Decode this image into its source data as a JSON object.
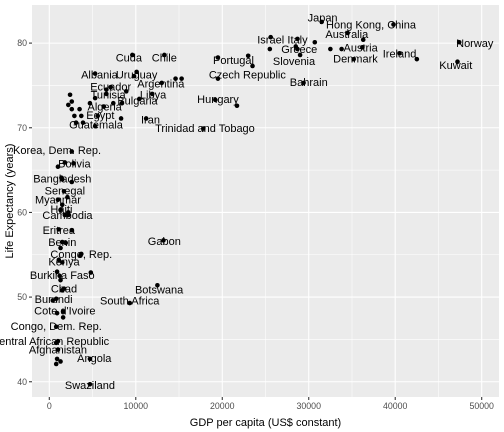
{
  "chart_data": {
    "type": "scatter",
    "title": "",
    "xlabel": "GDP per capita (US$ constant)",
    "ylabel": "Life Expectancy (years)",
    "xlim": [
      -2000,
      52000
    ],
    "ylim": [
      38.2,
      84.5
    ],
    "x_ticks": [
      0,
      10000,
      20000,
      30000,
      40000,
      50000
    ],
    "y_ticks": [
      40,
      50,
      60,
      70,
      80
    ],
    "grid": true,
    "legend": "none",
    "points": [
      {
        "label": "Japan",
        "x": 31500,
        "y": 82.5,
        "lx": 31600,
        "ly": 83.0
      },
      {
        "label": "Hong Kong, China",
        "x": 39800,
        "y": 82.2,
        "lx": 37200,
        "ly": 82.2
      },
      {
        "label": "Israel",
        "x": 25600,
        "y": 80.7,
        "lx": 25600,
        "ly": 80.4
      },
      {
        "label": "Italy",
        "x": 28700,
        "y": 80.5,
        "lx": 28700,
        "ly": 80.4
      },
      {
        "label": "Australia",
        "x": 34500,
        "y": 81.2,
        "lx": 34400,
        "ly": 81.1
      },
      {
        "label": "Norway",
        "x": 47400,
        "y": 80.1,
        "lx": 49200,
        "ly": 80.0
      },
      {
        "label": "Cuda",
        "x": 9600,
        "y": 78.6,
        "lx": 9200,
        "ly": 78.3
      },
      {
        "label": "Chile",
        "x": 13300,
        "y": 78.6,
        "lx": 13300,
        "ly": 78.3
      },
      {
        "label": "Greece",
        "x": 28700,
        "y": 79.3,
        "lx": 28900,
        "ly": 79.3
      },
      {
        "label": "Austria",
        "x": 36200,
        "y": 79.5,
        "lx": 36000,
        "ly": 79.5
      },
      {
        "label": "Portugal",
        "x": 19500,
        "y": 78.3,
        "lx": 21300,
        "ly": 78.0
      },
      {
        "label": "Slovenia",
        "x": 23500,
        "y": 77.3,
        "lx": 28300,
        "ly": 77.9
      },
      {
        "label": "Denmark",
        "x": 35200,
        "y": 78.1,
        "lx": 35400,
        "ly": 78.2
      },
      {
        "label": "Ireland",
        "x": 40500,
        "y": 78.8,
        "lx": 40500,
        "ly": 78.8
      },
      {
        "label": "Kuwait",
        "x": 47200,
        "y": 77.8,
        "lx": 47000,
        "ly": 77.4
      },
      {
        "label": "Albania",
        "x": 5300,
        "y": 76.4,
        "lx": 5800,
        "ly": 76.3
      },
      {
        "label": "Uruguay",
        "x": 9800,
        "y": 76.1,
        "lx": 10100,
        "ly": 76.3
      },
      {
        "label": "Czech Republic",
        "x": 19500,
        "y": 75.8,
        "lx": 22900,
        "ly": 76.3
      },
      {
        "label": "Argentina",
        "x": 13000,
        "y": 75.3,
        "lx": 12900,
        "ly": 75.2
      },
      {
        "label": "Bahrain",
        "x": 29400,
        "y": 75.3,
        "lx": 30000,
        "ly": 75.4
      },
      {
        "label": "Ecuador",
        "x": 7100,
        "y": 74.8,
        "lx": 7100,
        "ly": 74.9
      },
      {
        "label": "Libya",
        "x": 11900,
        "y": 74.0,
        "lx": 12000,
        "ly": 73.9
      },
      {
        "label": "Tunisia",
        "x": 6600,
        "y": 74.0,
        "lx": 6800,
        "ly": 73.9
      },
      {
        "label": "Hungary",
        "x": 19200,
        "y": 73.3,
        "lx": 19500,
        "ly": 73.4
      },
      {
        "label": "Bulgaria",
        "x": 10400,
        "y": 73.4,
        "lx": 10200,
        "ly": 73.2
      },
      {
        "label": "Algeria",
        "x": 6300,
        "y": 72.5,
        "lx": 6400,
        "ly": 72.5
      },
      {
        "label": "Egypt",
        "x": 5600,
        "y": 71.4,
        "lx": 5900,
        "ly": 71.5
      },
      {
        "label": "Iran",
        "x": 11200,
        "y": 71.1,
        "lx": 11700,
        "ly": 71.0
      },
      {
        "label": "Guatemala",
        "x": 5300,
        "y": 70.2,
        "lx": 5400,
        "ly": 70.4
      },
      {
        "label": "Trinidad and Tobago",
        "x": 17800,
        "y": 69.9,
        "lx": 18000,
        "ly": 70.0
      },
      {
        "label": "Korea, Dem. Rep.",
        "x": 2600,
        "y": 67.2,
        "lx": 900,
        "ly": 67.4
      },
      {
        "label": "Bolivia",
        "x": 2800,
        "y": 65.8,
        "lx": 2900,
        "ly": 65.8
      },
      {
        "label": "Bangladesh",
        "x": 1500,
        "y": 63.9,
        "lx": 1500,
        "ly": 64.0
      },
      {
        "label": "Senegal",
        "x": 1700,
        "y": 62.5,
        "lx": 1800,
        "ly": 62.6
      },
      {
        "label": "Myanmar",
        "x": 1000,
        "y": 61.5,
        "lx": 1000,
        "ly": 61.5
      },
      {
        "label": "Haiti",
        "x": 1300,
        "y": 60.3,
        "lx": 1400,
        "ly": 60.4
      },
      {
        "label": "Cambodia",
        "x": 2200,
        "y": 59.7,
        "lx": 2100,
        "ly": 59.7
      },
      {
        "label": "Eritrea",
        "x": 1100,
        "y": 58.0,
        "lx": 1100,
        "ly": 57.9
      },
      {
        "label": "Benin",
        "x": 1500,
        "y": 56.5,
        "lx": 1500,
        "ly": 56.5
      },
      {
        "label": "Gabon",
        "x": 13200,
        "y": 56.7,
        "lx": 13300,
        "ly": 56.6
      },
      {
        "label": "Congo, Rep.",
        "x": 3700,
        "y": 55.1,
        "lx": 3700,
        "ly": 55.1
      },
      {
        "label": "Kenya",
        "x": 1500,
        "y": 54.1,
        "lx": 1700,
        "ly": 54.2
      },
      {
        "label": "Burkina Faso",
        "x": 1200,
        "y": 52.5,
        "lx": 1500,
        "ly": 52.6
      },
      {
        "label": "Chad",
        "x": 1700,
        "y": 51.0,
        "lx": 1700,
        "ly": 51.0
      },
      {
        "label": "Botswana",
        "x": 12500,
        "y": 51.4,
        "lx": 12700,
        "ly": 50.9
      },
      {
        "label": "Burundi",
        "x": 400,
        "y": 49.6,
        "lx": 500,
        "ly": 49.8
      },
      {
        "label": "South Africa",
        "x": 9300,
        "y": 49.3,
        "lx": 9300,
        "ly": 49.6
      },
      {
        "label": "Cote d'Ivoire",
        "x": 1600,
        "y": 48.3,
        "lx": 1800,
        "ly": 48.4
      },
      {
        "label": "Congo, Dem. Rep.",
        "x": 800,
        "y": 46.5,
        "lx": 800,
        "ly": 46.6
      },
      {
        "label": "Central African Republic",
        "x": 800,
        "y": 44.6,
        "lx": 100,
        "ly": 44.8
      },
      {
        "label": "Afghanistan",
        "x": 1000,
        "y": 43.8,
        "lx": 1000,
        "ly": 43.8
      },
      {
        "label": "Angola",
        "x": 4700,
        "y": 42.7,
        "lx": 5200,
        "ly": 42.8
      },
      {
        "label": "Swaziland",
        "x": 4700,
        "y": 39.7,
        "lx": 4700,
        "ly": 39.6
      }
    ],
    "unlabeled_points": [
      [
        2400,
        73.9
      ],
      [
        2600,
        73.1
      ],
      [
        2600,
        72.2
      ],
      [
        3500,
        72.2
      ],
      [
        2900,
        71.4
      ],
      [
        3100,
        70.6
      ],
      [
        3900,
        70.6
      ],
      [
        4700,
        72.9
      ],
      [
        5300,
        73.5
      ],
      [
        6600,
        74.5
      ],
      [
        7400,
        72.9
      ],
      [
        8400,
        72.9
      ],
      [
        8900,
        74.3
      ],
      [
        10100,
        76.6
      ],
      [
        14600,
        75.8
      ],
      [
        15300,
        75.8
      ],
      [
        21700,
        72.6
      ],
      [
        23000,
        78.5
      ],
      [
        25500,
        79.3
      ],
      [
        29000,
        78.6
      ],
      [
        30700,
        80.1
      ],
      [
        32500,
        79.3
      ],
      [
        33800,
        79.3
      ],
      [
        36300,
        80.4
      ],
      [
        42500,
        78.1
      ],
      [
        28500,
        79.6
      ],
      [
        2200,
        72.7
      ],
      [
        3700,
        71.4
      ],
      [
        8300,
        71.1
      ],
      [
        1000,
        65.4
      ],
      [
        1800,
        65.9
      ],
      [
        1400,
        64.1
      ],
      [
        2600,
        63.6
      ],
      [
        2100,
        61.8
      ],
      [
        1500,
        60.9
      ],
      [
        2200,
        60.0
      ],
      [
        1800,
        59.7
      ],
      [
        2600,
        57.9
      ],
      [
        1900,
        56.4
      ],
      [
        1300,
        55.8
      ],
      [
        3600,
        54.9
      ],
      [
        1100,
        54.4
      ],
      [
        900,
        53.0
      ],
      [
        1300,
        52.0
      ],
      [
        4800,
        52.9
      ],
      [
        1500,
        50.8
      ],
      [
        800,
        49.8
      ],
      [
        900,
        48.1
      ],
      [
        1600,
        47.6
      ],
      [
        1000,
        44.8
      ],
      [
        800,
        42.1
      ],
      [
        1300,
        42.4
      ],
      [
        900,
        42.7
      ]
    ]
  }
}
